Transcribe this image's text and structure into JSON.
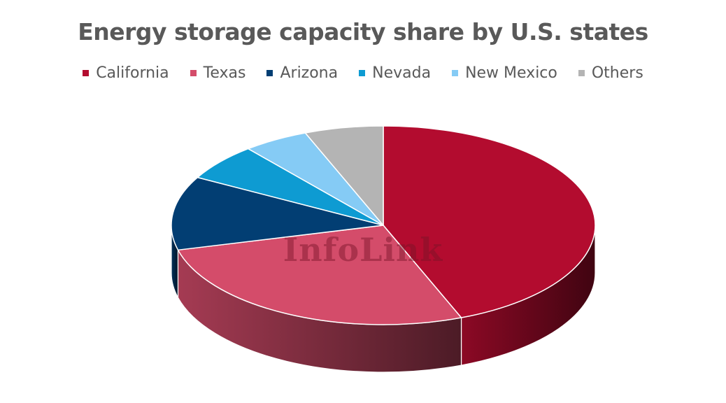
{
  "chart_data": {
    "type": "pie",
    "title": "Energy storage capacity share by U.S. states",
    "legend_position": "top",
    "three_d": true,
    "watermark": "InfoLink",
    "slices": [
      {
        "label": "California",
        "value": 44,
        "color": "#B30C2F"
      },
      {
        "label": "Texas",
        "value": 27,
        "color": "#D44C6A"
      },
      {
        "label": "Arizona",
        "value": 12,
        "color": "#023E73"
      },
      {
        "label": "Nevada",
        "value": 6,
        "color": "#0E9BD2"
      },
      {
        "label": "New Mexico",
        "value": 5,
        "color": "#85CBF5"
      },
      {
        "label": "Others",
        "value": 6,
        "color": "#B4B4B4"
      }
    ]
  }
}
